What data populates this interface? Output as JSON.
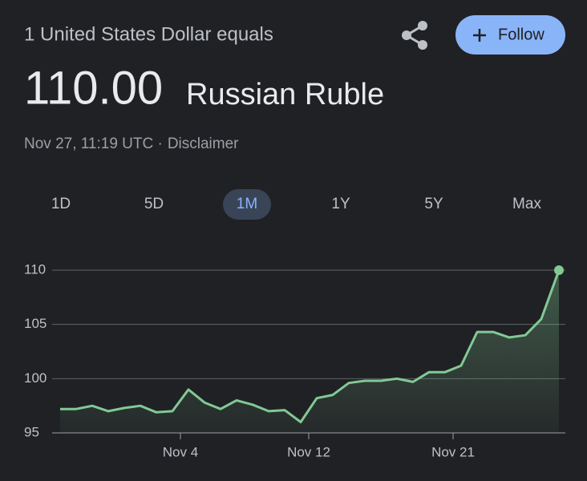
{
  "header": {
    "subtitle": "1 United States Dollar equals",
    "rate": "110.00",
    "currency": "Russian Ruble",
    "timestamp": "Nov 27, 11:19 UTC ·",
    "disclaimer": "Disclaimer",
    "follow": "Follow"
  },
  "ranges": [
    "1D",
    "5D",
    "1M",
    "1Y",
    "5Y",
    "Max"
  ],
  "selected_range": 2,
  "chart_data": {
    "type": "line",
    "color": "#81c995",
    "x": [
      -3.5,
      -2.5,
      -1.5,
      -0.5,
      0.5,
      1.5,
      2.5,
      3.5,
      4.5,
      5.5,
      6.5,
      7.5,
      8.5,
      9.5,
      10.5,
      11.5,
      12.5,
      13.5,
      14.5,
      15.5,
      16.5,
      17.5,
      18.5,
      19.5,
      20.5,
      21.5,
      22.5,
      23.5,
      24.5,
      25.5,
      26.5,
      27.6
    ],
    "values": [
      97.2,
      97.2,
      97.5,
      97.0,
      97.3,
      97.5,
      96.9,
      97.0,
      99.0,
      97.8,
      97.2,
      98.0,
      97.6,
      97.0,
      97.1,
      96.0,
      98.2,
      98.5,
      99.6,
      99.8,
      99.8,
      100.0,
      99.7,
      100.6,
      100.6,
      101.2,
      104.3,
      104.3,
      103.8,
      104.0,
      105.5,
      110.0
    ],
    "xlim": [
      -3.5,
      27.6
    ],
    "xticks": [
      {
        "value": 4,
        "label": "Nov 4"
      },
      {
        "value": 12,
        "label": "Nov 12"
      },
      {
        "value": 21,
        "label": "Nov 21"
      }
    ],
    "ylim": [
      95,
      110
    ],
    "yticks": [
      95,
      100,
      105,
      110
    ],
    "grid": true
  }
}
